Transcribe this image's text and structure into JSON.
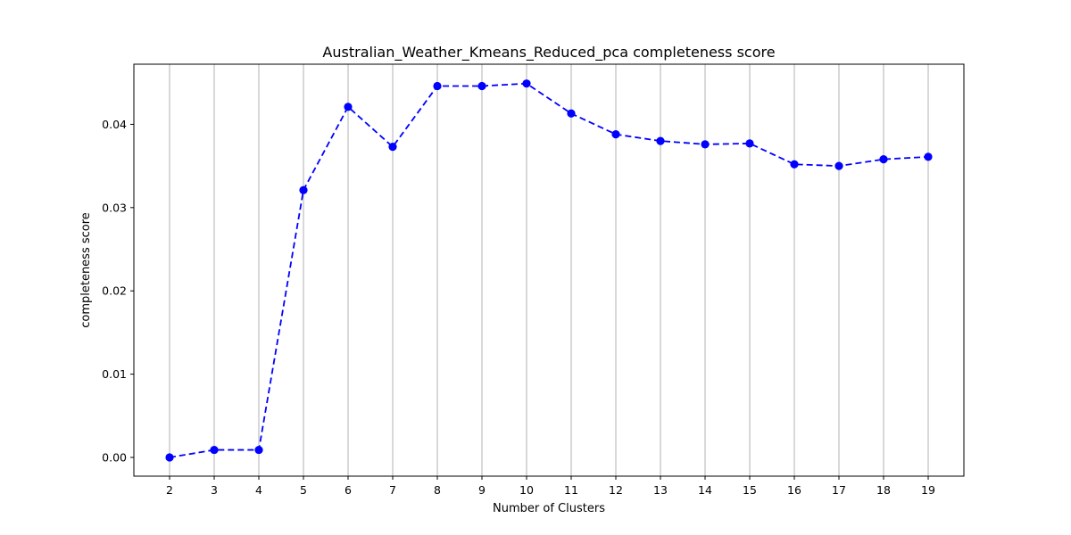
{
  "chart_data": {
    "type": "line",
    "title": "Australian_Weather_Kmeans_Reduced_pca completeness score",
    "xlabel": "Number of Clusters",
    "ylabel": "completeness score",
    "x": [
      2,
      3,
      4,
      5,
      6,
      7,
      8,
      9,
      10,
      11,
      12,
      13,
      14,
      15,
      16,
      17,
      18,
      19
    ],
    "series": [
      {
        "values": [
          0.0,
          0.0009,
          0.0009,
          0.0321,
          0.0421,
          0.0373,
          0.0446,
          0.0446,
          0.0449,
          0.0413,
          0.0388,
          0.038,
          0.0376,
          0.0377,
          0.0352,
          0.035,
          0.0358,
          0.0361
        ],
        "color": "#0000ff",
        "line_style": "dashed",
        "marker": "circle"
      }
    ],
    "xticks": [
      2,
      3,
      4,
      5,
      6,
      7,
      8,
      9,
      10,
      11,
      12,
      13,
      14,
      15,
      16,
      17,
      18,
      19
    ],
    "yticks": [
      0.0,
      0.01,
      0.02,
      0.03,
      0.04
    ],
    "ytick_labels": [
      "0.00",
      "0.01",
      "0.02",
      "0.03",
      "0.04"
    ],
    "xlim": [
      1.2,
      19.8
    ],
    "ylim": [
      -0.00225,
      0.04722
    ],
    "grid": "vertical",
    "grid_color": "#b0b0b0"
  }
}
